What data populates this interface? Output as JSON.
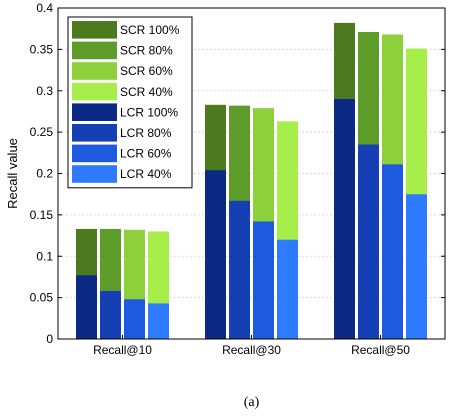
{
  "chart_data": {
    "type": "bar",
    "ylabel": "Recall value",
    "ylim": [
      0,
      0.4
    ],
    "yticks": [
      "0",
      "0.05",
      "0.1",
      "0.15",
      "0.2",
      "0.25",
      "0.3",
      "0.35",
      "0.4"
    ],
    "categories": [
      "Recall@10",
      "Recall@30",
      "Recall@50"
    ],
    "grid": true,
    "legend_position": "top-left",
    "bar_groups_per_category": [
      "100%",
      "80%",
      "60%",
      "40%"
    ],
    "series": [
      {
        "name": "SCR 100%",
        "values": [
          0.133,
          0.283,
          0.382
        ],
        "color": "#4d7a1f"
      },
      {
        "name": "SCR 80%",
        "values": [
          0.133,
          0.282,
          0.371
        ],
        "color": "#5e9c2a"
      },
      {
        "name": "SCR 60%",
        "values": [
          0.132,
          0.279,
          0.368
        ],
        "color": "#8ecf3c"
      },
      {
        "name": "SCR 40%",
        "values": [
          0.13,
          0.263,
          0.351
        ],
        "color": "#a8ee4a"
      },
      {
        "name": "LCR 100%",
        "values": [
          0.077,
          0.204,
          0.29
        ],
        "color": "#0b2a85"
      },
      {
        "name": "LCR 80%",
        "values": [
          0.058,
          0.167,
          0.235
        ],
        "color": "#1540b5"
      },
      {
        "name": "LCR 60%",
        "values": [
          0.048,
          0.142,
          0.211
        ],
        "color": "#1e5ae0"
      },
      {
        "name": "LCR 40%",
        "values": [
          0.043,
          0.12,
          0.175
        ],
        "color": "#2f7bff"
      }
    ]
  },
  "caption": "(a)"
}
